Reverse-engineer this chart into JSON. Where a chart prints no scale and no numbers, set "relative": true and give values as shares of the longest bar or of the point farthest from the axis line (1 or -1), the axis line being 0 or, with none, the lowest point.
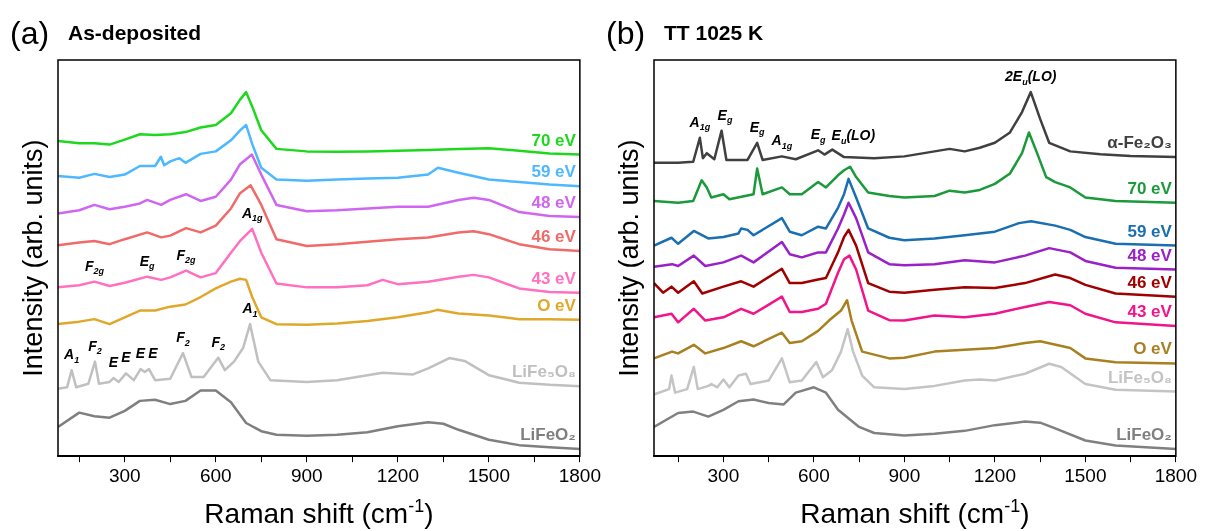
{
  "chart_data": [
    {
      "type": "line",
      "title": "As-deposited",
      "xlabel": "Raman shift (cm$^{-1}$)",
      "ylabel": "Intensity (arb. units)",
      "relative": true,
      "tick_labels": "x",
      "legend": false,
      "grid": false,
      "xlim": [
        80,
        1800
      ],
      "xticks": [
        {
          "value": 150,
          "label": null
        },
        300,
        {
          "value": 450,
          "label": null
        },
        600,
        {
          "value": 750,
          "label": null
        },
        900,
        {
          "value": 1050,
          "label": null
        },
        1200,
        {
          "value": 1350,
          "label": null
        },
        1500,
        {
          "value": 1650,
          "label": null
        },
        1800
      ],
      "annotations": [
        "(a)",
        {
          "text": "A$_{1g}$",
          "x": 720,
          "y": 0.617
        },
        {
          "text": "F$_{2g}$",
          "x": 200,
          "y": 0.469
        },
        {
          "text": "E$_{g}$",
          "x": 374,
          "y": 0.483
        },
        {
          "text": "F$_{2g}$",
          "x": 502,
          "y": 0.5
        },
        {
          "text": "A$_{1}$",
          "x": 713,
          "y": 0.35
        },
        {
          "text": "F$_{2}$",
          "x": 608,
          "y": 0.256
        },
        {
          "text": "F$_{2}$",
          "x": 492,
          "y": 0.269
        },
        {
          "text": "E",
          "x": 263,
          "y": 0.199
        },
        {
          "text": "E",
          "x": 304,
          "y": 0.212
        },
        {
          "text": "E",
          "x": 352,
          "y": 0.224
        },
        {
          "text": "E",
          "x": 380,
          "y": 0.224
        },
        {
          "text": "F$_{2}$",
          "x": 202,
          "y": 0.245
        },
        {
          "text": "A$_{1}$",
          "x": 125,
          "y": 0.221
        }
      ],
      "series": [
        {
          "name": "70 eV",
          "color": "#1ed81e",
          "x": [
            80,
            150,
            200,
            250,
            300,
            350,
            400,
            450,
            500,
            550,
            600,
            650,
            680,
            700,
            720,
            750,
            800,
            900,
            1000,
            1100,
            1200,
            1300,
            1400,
            1500,
            1600,
            1700,
            1800
          ],
          "values": [
            0.863,
            0.857,
            0.857,
            0.853,
            0.867,
            0.882,
            0.88,
            0.882,
            0.888,
            0.901,
            0.908,
            0.941,
            0.979,
            1.0,
            0.96,
            0.893,
            0.841,
            0.834,
            0.833,
            0.834,
            0.836,
            0.838,
            0.841,
            0.843,
            0.836,
            0.828,
            0.825
          ]
        },
        {
          "name": "59 eV",
          "color": "#4db8ff",
          "x": [
            80,
            150,
            200,
            250,
            300,
            350,
            400,
            419,
            430,
            450,
            480,
            500,
            550,
            600,
            650,
            680,
            700,
            720,
            750,
            800,
            900,
            1000,
            1100,
            1200,
            1300,
            1332,
            1400,
            1500,
            1600,
            1700,
            1800
          ],
          "values": [
            0.765,
            0.76,
            0.771,
            0.762,
            0.769,
            0.793,
            0.793,
            0.819,
            0.795,
            0.806,
            0.815,
            0.802,
            0.827,
            0.834,
            0.865,
            0.893,
            0.908,
            0.855,
            0.788,
            0.755,
            0.752,
            0.755,
            0.758,
            0.76,
            0.769,
            0.788,
            0.774,
            0.755,
            0.748,
            0.741,
            0.736
          ]
        },
        {
          "name": "48 eV",
          "color": "#d066f0",
          "x": [
            80,
            150,
            200,
            250,
            300,
            350,
            374,
            420,
            450,
            502,
            550,
            600,
            650,
            680,
            719,
            750,
            800,
            900,
            1000,
            1100,
            1200,
            1300,
            1400,
            1450,
            1500,
            1600,
            1700,
            1800
          ],
          "values": [
            0.66,
            0.669,
            0.684,
            0.672,
            0.679,
            0.688,
            0.698,
            0.684,
            0.698,
            0.714,
            0.695,
            0.707,
            0.755,
            0.798,
            0.825,
            0.769,
            0.684,
            0.666,
            0.669,
            0.674,
            0.679,
            0.679,
            0.698,
            0.704,
            0.698,
            0.664,
            0.653,
            0.65
          ]
        },
        {
          "name": "46 eV",
          "color": "#f06a6a",
          "x": [
            80,
            150,
            200,
            250,
            300,
            374,
            420,
            450,
            502,
            550,
            600,
            650,
            680,
            715,
            750,
            800,
            900,
            1000,
            1100,
            1200,
            1300,
            1400,
            1450,
            1500,
            1600,
            1700,
            1800
          ],
          "values": [
            0.571,
            0.579,
            0.583,
            0.574,
            0.588,
            0.607,
            0.593,
            0.598,
            0.619,
            0.607,
            0.626,
            0.674,
            0.717,
            0.739,
            0.684,
            0.588,
            0.569,
            0.574,
            0.581,
            0.588,
            0.593,
            0.607,
            0.61,
            0.602,
            0.574,
            0.56,
            0.555
          ]
        },
        {
          "name": "43 eV",
          "color": "#ff70c0",
          "x": [
            80,
            150,
            200,
            250,
            300,
            374,
            420,
            450,
            502,
            550,
            600,
            650,
            680,
            720,
            750,
            800,
            900,
            1000,
            1100,
            1150,
            1200,
            1300,
            1400,
            1450,
            1500,
            1600,
            1700,
            1800
          ],
          "values": [
            0.453,
            0.459,
            0.469,
            0.457,
            0.466,
            0.483,
            0.474,
            0.481,
            0.5,
            0.481,
            0.493,
            0.55,
            0.583,
            0.617,
            0.55,
            0.464,
            0.453,
            0.453,
            0.459,
            0.474,
            0.462,
            0.469,
            0.483,
            0.488,
            0.481,
            0.45,
            0.44,
            0.438
          ]
        },
        {
          "name": "O eV",
          "color": "#e0a82a",
          "x": [
            80,
            150,
            200,
            250,
            300,
            350,
            400,
            450,
            500,
            550,
            600,
            650,
            680,
            700,
            720,
            750,
            800,
            900,
            1000,
            1100,
            1200,
            1300,
            1330,
            1400,
            1500,
            1600,
            1700,
            1800
          ],
          "values": [
            0.35,
            0.357,
            0.364,
            0.35,
            0.369,
            0.388,
            0.388,
            0.399,
            0.405,
            0.426,
            0.45,
            0.469,
            0.477,
            0.474,
            0.426,
            0.369,
            0.35,
            0.348,
            0.352,
            0.359,
            0.369,
            0.383,
            0.39,
            0.38,
            0.374,
            0.364,
            0.364,
            0.362
          ]
        },
        {
          "name": "LiFe₅O₈",
          "color": "#c0c0c0",
          "x": [
            80,
            110,
            125,
            140,
            180,
            202,
            215,
            250,
            263,
            280,
            304,
            330,
            352,
            366,
            380,
            400,
            450,
            492,
            520,
            560,
            608,
            630,
            660,
            690,
            713,
            740,
            780,
            900,
            1000,
            1100,
            1150,
            1250,
            1300,
            1370,
            1420,
            1500,
            1600,
            1700,
            1800
          ],
          "values": [
            0.169,
            0.173,
            0.221,
            0.173,
            0.183,
            0.245,
            0.183,
            0.188,
            0.199,
            0.188,
            0.212,
            0.193,
            0.224,
            0.216,
            0.224,
            0.193,
            0.197,
            0.269,
            0.202,
            0.202,
            0.256,
            0.221,
            0.245,
            0.283,
            0.35,
            0.245,
            0.193,
            0.188,
            0.193,
            0.207,
            0.214,
            0.209,
            0.226,
            0.255,
            0.247,
            0.207,
            0.186,
            0.18,
            0.176
          ]
        },
        {
          "name": "LiFeO₂",
          "color": "#7f7f7f",
          "x": [
            80,
            150,
            200,
            250,
            300,
            350,
            400,
            450,
            500,
            550,
            600,
            650,
            700,
            750,
            800,
            900,
            1000,
            1100,
            1200,
            1300,
            1350,
            1400,
            1500,
            1600,
            1700,
            1800
          ],
          "values": [
            0.062,
            0.102,
            0.092,
            0.088,
            0.107,
            0.135,
            0.138,
            0.126,
            0.135,
            0.164,
            0.164,
            0.131,
            0.073,
            0.05,
            0.04,
            0.037,
            0.04,
            0.047,
            0.064,
            0.075,
            0.071,
            0.054,
            0.026,
            0.011,
            0.005,
            0
          ]
        }
      ]
    },
    {
      "type": "line",
      "title": "TT 1025 K",
      "xlabel": "Raman shift (cm$^{-1}$)",
      "ylabel": "Intensity (arb. units)",
      "relative": true,
      "tick_labels": "x",
      "legend": false,
      "grid": false,
      "xlim": [
        70,
        1800
      ],
      "xticks": [
        {
          "value": 150,
          "label": null
        },
        300,
        {
          "value": 450,
          "label": null
        },
        600,
        {
          "value": 750,
          "label": null
        },
        900,
        {
          "value": 1050,
          "label": null
        },
        1200,
        {
          "value": 1350,
          "label": null
        },
        1500,
        {
          "value": 1650,
          "label": null
        },
        1800
      ],
      "annotations": [
        "(b)",
        {
          "text": "A$_{1g}$",
          "x": 222,
          "y": 0.872
        },
        {
          "text": "E$_{g}$",
          "x": 294,
          "y": 0.892
        },
        {
          "text": "E$_{g}$",
          "x": 412,
          "y": 0.858
        },
        {
          "text": "A$_{1g}$",
          "x": 494,
          "y": 0.82
        },
        {
          "text": "E$_{g}$",
          "x": 614,
          "y": 0.837
        },
        {
          "text": "E$_{u}$(LO)",
          "x": 672,
          "y": 0.834
        },
        {
          "text": "2E$_{u}$(LO)",
          "x": 1319,
          "y": 1.0
        }
      ],
      "series": [
        {
          "name": "α-Fe₂O₃",
          "color": "#404040",
          "x": [
            70,
            150,
            200,
            222,
            232,
            245,
            270,
            294,
            310,
            380,
            412,
            430,
            494,
            540,
            614,
            635,
            661,
            700,
            800,
            900,
            1000,
            1050,
            1100,
            1150,
            1200,
            1250,
            1290,
            1319,
            1350,
            1380,
            1450,
            1550,
            1650,
            1800
          ],
          "values": [
            0.802,
            0.802,
            0.805,
            0.872,
            0.815,
            0.829,
            0.812,
            0.892,
            0.81,
            0.81,
            0.858,
            0.81,
            0.82,
            0.812,
            0.837,
            0.825,
            0.839,
            0.818,
            0.815,
            0.82,
            0.834,
            0.841,
            0.834,
            0.844,
            0.858,
            0.887,
            0.944,
            1.0,
            0.925,
            0.858,
            0.834,
            0.826,
            0.821,
            0.818
          ]
        },
        {
          "name": "70 eV",
          "color": "#1a9a3a",
          "x": [
            70,
            150,
            200,
            228,
            245,
            260,
            300,
            320,
            400,
            412,
            430,
            494,
            520,
            560,
            614,
            640,
            680,
            700,
            720,
            740,
            780,
            850,
            900,
            1000,
            1050,
            1100,
            1150,
            1200,
            1250,
            1290,
            1313,
            1340,
            1370,
            1400,
            1450,
            1500,
            1600,
            1800
          ],
          "values": [
            0.695,
            0.69,
            0.695,
            0.753,
            0.733,
            0.705,
            0.714,
            0.7,
            0.714,
            0.786,
            0.714,
            0.733,
            0.714,
            0.714,
            0.748,
            0.733,
            0.767,
            0.781,
            0.791,
            0.762,
            0.719,
            0.709,
            0.705,
            0.709,
            0.724,
            0.719,
            0.726,
            0.743,
            0.772,
            0.829,
            0.887,
            0.829,
            0.762,
            0.748,
            0.733,
            0.705,
            0.695,
            0.69
          ]
        },
        {
          "name": "59 eV",
          "color": "#1a6fb0",
          "x": [
            70,
            128,
            150,
            202,
            250,
            300,
            350,
            359,
            380,
            400,
            494,
            520,
            560,
            614,
            640,
            680,
            700,
            715,
            740,
            780,
            850,
            900,
            1000,
            1100,
            1200,
            1280,
            1320,
            1400,
            1450,
            1500,
            1600,
            1800
          ],
          "values": [
            0.57,
            0.592,
            0.575,
            0.611,
            0.59,
            0.594,
            0.604,
            0.618,
            0.614,
            0.599,
            0.647,
            0.609,
            0.599,
            0.623,
            0.618,
            0.676,
            0.714,
            0.757,
            0.705,
            0.618,
            0.592,
            0.585,
            0.59,
            0.599,
            0.609,
            0.633,
            0.638,
            0.626,
            0.614,
            0.594,
            0.575,
            0.57
          ]
        },
        {
          "name": "48 eV",
          "color": "#9a20c8",
          "x": [
            70,
            130,
            150,
            202,
            240,
            300,
            359,
            400,
            494,
            520,
            560,
            614,
            640,
            680,
            700,
            715,
            740,
            780,
            850,
            900,
            1000,
            1100,
            1200,
            1300,
            1380,
            1450,
            1500,
            1600,
            1800
          ],
          "values": [
            0.511,
            0.518,
            0.513,
            0.542,
            0.513,
            0.523,
            0.542,
            0.523,
            0.58,
            0.546,
            0.537,
            0.551,
            0.551,
            0.618,
            0.657,
            0.69,
            0.647,
            0.551,
            0.518,
            0.515,
            0.518,
            0.529,
            0.523,
            0.542,
            0.563,
            0.551,
            0.527,
            0.508,
            0.503
          ]
        },
        {
          "name": "46 eV",
          "color": "#a00000",
          "x": [
            70,
            100,
            128,
            150,
            202,
            230,
            300,
            359,
            400,
            494,
            520,
            560,
            614,
            640,
            680,
            700,
            715,
            740,
            780,
            850,
            900,
            1000,
            1100,
            1200,
            1300,
            1400,
            1450,
            1500,
            1600,
            1800
          ],
          "values": [
            0.465,
            0.438,
            0.455,
            0.438,
            0.47,
            0.436,
            0.455,
            0.47,
            0.455,
            0.505,
            0.465,
            0.465,
            0.475,
            0.479,
            0.551,
            0.594,
            0.614,
            0.57,
            0.465,
            0.441,
            0.438,
            0.446,
            0.453,
            0.451,
            0.465,
            0.489,
            0.479,
            0.46,
            0.436,
            0.427
          ]
        },
        {
          "name": "43 eV",
          "color": "#f0158a",
          "x": [
            70,
            128,
            150,
            202,
            240,
            300,
            359,
            400,
            494,
            520,
            560,
            614,
            640,
            680,
            700,
            718,
            740,
            780,
            850,
            900,
            1000,
            1100,
            1200,
            1300,
            1380,
            1450,
            1500,
            1600,
            1800
          ],
          "values": [
            0.369,
            0.379,
            0.355,
            0.393,
            0.36,
            0.369,
            0.393,
            0.379,
            0.427,
            0.384,
            0.384,
            0.393,
            0.407,
            0.494,
            0.532,
            0.542,
            0.503,
            0.388,
            0.361,
            0.36,
            0.374,
            0.369,
            0.379,
            0.398,
            0.412,
            0.403,
            0.379,
            0.355,
            0.345
          ]
        },
        {
          "name": "O eV",
          "color": "#a88020",
          "x": [
            70,
            130,
            150,
            202,
            240,
            300,
            359,
            400,
            494,
            520,
            560,
            614,
            650,
            690,
            710,
            725,
            760,
            850,
            900,
            1000,
            1100,
            1200,
            1300,
            1350,
            1450,
            1500,
            1600,
            1800
          ],
          "values": [
            0.254,
            0.273,
            0.268,
            0.292,
            0.268,
            0.283,
            0.302,
            0.288,
            0.326,
            0.297,
            0.302,
            0.331,
            0.36,
            0.388,
            0.417,
            0.36,
            0.273,
            0.254,
            0.256,
            0.273,
            0.278,
            0.283,
            0.297,
            0.302,
            0.283,
            0.254,
            0.243,
            0.24
          ]
        },
        {
          "name": "LiFe₅O₈",
          "color": "#c4c4c4",
          "x": [
            70,
            120,
            128,
            140,
            180,
            202,
            215,
            250,
            260,
            280,
            300,
            320,
            350,
            375,
            390,
            450,
            494,
            520,
            560,
            608,
            630,
            660,
            690,
            712,
            730,
            760,
            800,
            900,
            1000,
            1100,
            1150,
            1200,
            1300,
            1380,
            1420,
            1500,
            1600,
            1800
          ],
          "values": [
            0.153,
            0.168,
            0.206,
            0.158,
            0.168,
            0.23,
            0.168,
            0.177,
            0.182,
            0.173,
            0.195,
            0.173,
            0.206,
            0.211,
            0.182,
            0.192,
            0.254,
            0.187,
            0.192,
            0.244,
            0.201,
            0.221,
            0.273,
            0.336,
            0.273,
            0.206,
            0.173,
            0.168,
            0.177,
            0.192,
            0.195,
            0.192,
            0.211,
            0.239,
            0.23,
            0.182,
            0.166,
            0.161
          ]
        },
        {
          "name": "LiFeO₂",
          "color": "#808080",
          "x": [
            70,
            150,
            200,
            250,
            300,
            350,
            400,
            450,
            500,
            540,
            600,
            640,
            680,
            750,
            800,
            900,
            1000,
            1100,
            1200,
            1300,
            1350,
            1400,
            1500,
            1600,
            1800
          ],
          "values": [
            0.062,
            0.101,
            0.105,
            0.091,
            0.11,
            0.134,
            0.139,
            0.129,
            0.125,
            0.158,
            0.173,
            0.158,
            0.11,
            0.062,
            0.045,
            0.038,
            0.043,
            0.051,
            0.067,
            0.077,
            0.074,
            0.058,
            0.024,
            0.01,
            0
          ]
        }
      ]
    }
  ]
}
